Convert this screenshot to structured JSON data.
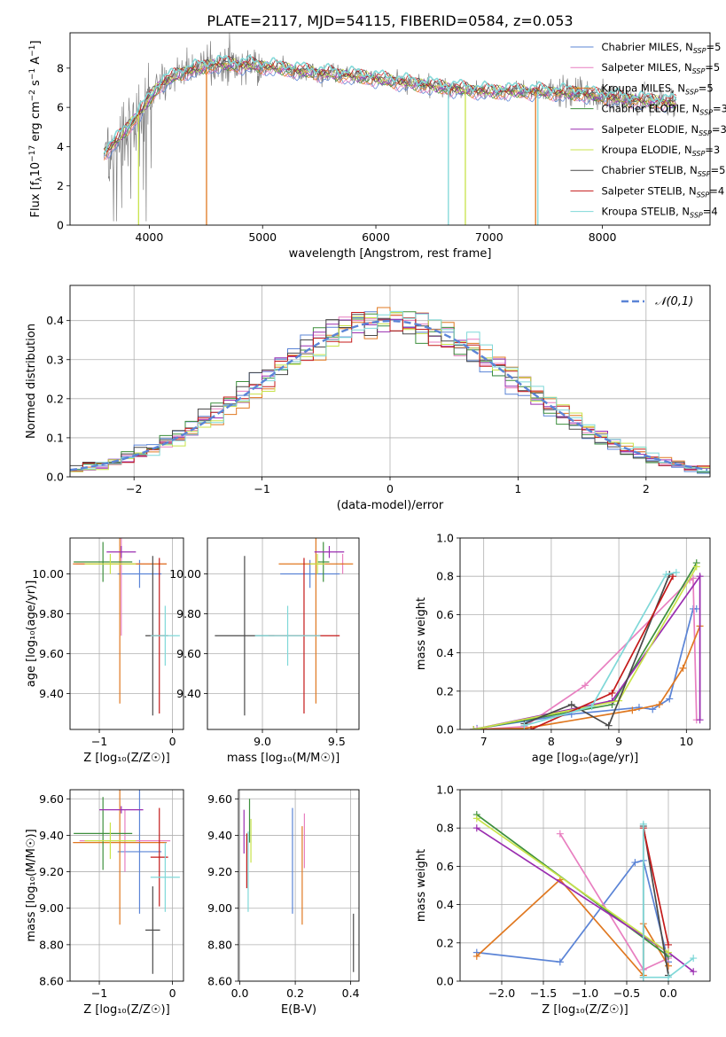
{
  "figure_title": "PLATE=2117, MJD=54115, FIBERID=0584, z=0.053",
  "series_colors": {
    "Chabrier MILES": "#5b84d6",
    "Salpeter MILES": "#e87fc0",
    "Kroupa MILES": "#e07820",
    "Chabrier ELODIE": "#3d8f3d",
    "Salpeter ELODIE": "#9a2db0",
    "Kroupa ELODIE": "#c8e34a",
    "Chabrier STELIB": "#4a4a4a",
    "Salpeter STELIB": "#c41a1a",
    "Kroupa STELIB": "#7fd8d8"
  },
  "chart_data": [
    {
      "id": "spectrum",
      "type": "line",
      "title": "PLATE=2117, MJD=54115, FIBERID=0584, z=0.053",
      "xlabel": "wavelength [Angstrom, rest frame]",
      "ylabel_parts": [
        "Flux [f",
        "λ",
        "10",
        "−17",
        " erg cm",
        "−2",
        " s",
        "−1",
        " A",
        "−1",
        "]"
      ],
      "xlim": [
        3300,
        8950
      ],
      "ylim": [
        0,
        9.8
      ],
      "xticks": [
        4000,
        5000,
        6000,
        7000,
        8000
      ],
      "yticks": [
        0,
        2,
        4,
        6,
        8
      ],
      "grid": false,
      "legend_position": "top-right",
      "legend": [
        {
          "label": "Chabrier MILES",
          "n": "5"
        },
        {
          "label": "Salpeter MILES",
          "n": "5"
        },
        {
          "label": "Kroupa MILES",
          "n": "5"
        },
        {
          "label": "Chabrier ELODIE",
          "n": "3"
        },
        {
          "label": "Salpeter ELODIE",
          "n": "3"
        },
        {
          "label": "Kroupa ELODIE",
          "n": "3"
        },
        {
          "label": "Chabrier STELIB",
          "n": "5"
        },
        {
          "label": "Salpeter STELIB",
          "n": "4"
        },
        {
          "label": "Kroupa STELIB",
          "n": "4"
        }
      ],
      "data_color": "#808080",
      "data_x_range": [
        3600,
        8660
      ],
      "continuum": {
        "x": [
          3600,
          3700,
          3900,
          4100,
          4300,
          4600,
          5000,
          5400,
          5800,
          6200,
          6600,
          7000,
          7400,
          7800,
          8200,
          8660
        ],
        "y": [
          3.7,
          4.2,
          5.6,
          7.2,
          7.8,
          8.2,
          8.1,
          7.8,
          7.6,
          7.3,
          7.0,
          6.8,
          6.8,
          6.7,
          6.4,
          6.2
        ]
      },
      "dips": [
        {
          "x": 3905,
          "series": "Kroupa ELODIE"
        },
        {
          "x": 4505,
          "series": "Kroupa MILES"
        },
        {
          "x": 6640,
          "series": "Kroupa STELIB"
        },
        {
          "x": 6790,
          "series": "Kroupa ELODIE"
        },
        {
          "x": 7410,
          "series": "Kroupa MILES"
        },
        {
          "x": 7430,
          "series": "Kroupa STELIB"
        }
      ]
    },
    {
      "id": "residuals",
      "type": "line",
      "xlabel": "(data-model)/error",
      "ylabel": "Normed distribution",
      "xlim": [
        -2.5,
        2.5
      ],
      "ylim": [
        0,
        0.49
      ],
      "xticks": [
        -2,
        -1,
        0,
        1,
        2
      ],
      "yticks": [
        0.0,
        0.1,
        0.2,
        0.3,
        0.4
      ],
      "grid": true,
      "legend_position": "top-right",
      "reference_label": "𝒩(0,1)",
      "reference_color": "#5b84d6",
      "bin_width": 0.1,
      "histogram_series": [
        "Chabrier MILES",
        "Salpeter MILES",
        "Kroupa MILES",
        "Chabrier ELODIE",
        "Salpeter ELODIE",
        "Kroupa ELODIE",
        "Chabrier STELIB",
        "Salpeter STELIB",
        "Kroupa STELIB"
      ]
    },
    {
      "id": "age_vs_Z",
      "type": "scatter",
      "errorbars": true,
      "xlabel": "Z [log₁₀(Z/Z☉)]",
      "ylabel": "age  [log₁₀(age/yr)]",
      "xlim": [
        -1.4,
        0.15
      ],
      "ylim": [
        9.22,
        10.18
      ],
      "xticks": [
        -1,
        0
      ],
      "yticks": [
        9.4,
        9.6,
        9.8,
        10.0
      ],
      "grid": true,
      "points": [
        {
          "series": "Chabrier MILES",
          "x": -0.45,
          "xerr": 0.3,
          "y": 10.0,
          "yerr": 0.07
        },
        {
          "series": "Salpeter MILES",
          "x": -0.7,
          "xerr": 0.62,
          "y": 10.05,
          "yerr": 0.36
        },
        {
          "series": "Kroupa MILES",
          "x": -0.72,
          "xerr": 0.64,
          "y": 10.05,
          "yerr": 0.7
        },
        {
          "series": "Chabrier ELODIE",
          "x": -0.95,
          "xerr": 0.4,
          "y": 10.06,
          "yerr": 0.1
        },
        {
          "series": "Salpeter ELODIE",
          "x": -0.7,
          "xerr": 0.2,
          "y": 10.11,
          "yerr": 0.03
        },
        {
          "series": "Kroupa ELODIE",
          "x": -0.85,
          "xerr": 0.35,
          "y": 10.05,
          "yerr": 0.05
        },
        {
          "series": "Chabrier STELIB",
          "x": -0.27,
          "xerr": 0.1,
          "y": 9.69,
          "yerr": 0.4
        },
        {
          "series": "Salpeter STELIB",
          "x": -0.18,
          "xerr": 0.12,
          "y": 9.69,
          "yerr": 0.39
        },
        {
          "series": "Kroupa STELIB",
          "x": -0.1,
          "xerr": 0.2,
          "y": 9.69,
          "yerr": 0.15
        }
      ]
    },
    {
      "id": "age_vs_mass",
      "type": "scatter",
      "errorbars": true,
      "xlabel": "mass [log₁₀(M/M☉)]",
      "ylabel": "",
      "xlim": [
        8.63,
        9.65
      ],
      "ylim": [
        9.22,
        10.18
      ],
      "xticks": [
        9.0,
        9.5
      ],
      "yticks": [
        9.4,
        9.6,
        9.8,
        10.0
      ],
      "grid": true,
      "points": [
        {
          "series": "Chabrier MILES",
          "x": 9.32,
          "xerr": 0.2,
          "y": 10.0,
          "yerr": 0.07
        },
        {
          "series": "Salpeter MILES",
          "x": 9.54,
          "xerr": 0.01,
          "y": 10.05,
          "yerr": 0.05
        },
        {
          "series": "Kroupa MILES",
          "x": 9.36,
          "xerr": 0.25,
          "y": 10.05,
          "yerr": 0.7
        },
        {
          "series": "Chabrier ELODIE",
          "x": 9.41,
          "xerr": 0.04,
          "y": 10.06,
          "yerr": 0.1
        },
        {
          "series": "Salpeter ELODIE",
          "x": 9.45,
          "xerr": 0.1,
          "y": 10.11,
          "yerr": 0.03
        },
        {
          "series": "Kroupa ELODIE",
          "x": 9.37,
          "xerr": 0.05,
          "y": 10.05,
          "yerr": 0.05
        },
        {
          "series": "Chabrier STELIB",
          "x": 8.88,
          "xerr": 0.2,
          "y": 9.69,
          "yerr": 0.4
        },
        {
          "series": "Salpeter STELIB",
          "x": 9.28,
          "xerr": 0.24,
          "y": 9.69,
          "yerr": 0.39
        },
        {
          "series": "Kroupa STELIB",
          "x": 9.17,
          "xerr": 0.22,
          "y": 9.69,
          "yerr": 0.15
        }
      ]
    },
    {
      "id": "weight_vs_age",
      "type": "line",
      "xlabel": "age  [log₁₀(age/yr)]",
      "ylabel": "mass weight",
      "xlim": [
        6.65,
        10.35
      ],
      "ylim": [
        0,
        1.0
      ],
      "xticks": [
        7,
        8,
        9,
        10
      ],
      "yticks": [
        0.0,
        0.2,
        0.4,
        0.6,
        0.8,
        1.0
      ],
      "grid": true,
      "series": [
        {
          "name": "Chabrier MILES",
          "x": [
            6.9,
            8.3,
            9.3,
            9.5,
            9.75,
            10.1,
            10.15
          ],
          "y": [
            0.005,
            0.08,
            0.115,
            0.105,
            0.16,
            0.63,
            0.63
          ]
        },
        {
          "name": "Salpeter MILES",
          "x": [
            6.9,
            7.6,
            8.5,
            10.05,
            10.1,
            10.15
          ],
          "y": [
            0.0,
            0.015,
            0.23,
            0.78,
            0.79,
            0.05
          ]
        },
        {
          "name": "Kroupa MILES",
          "x": [
            6.85,
            7.6,
            9.2,
            9.6,
            9.95,
            10.2
          ],
          "y": [
            0.0,
            0.005,
            0.1,
            0.13,
            0.32,
            0.54
          ]
        },
        {
          "name": "Chabrier ELODIE",
          "x": [
            6.85,
            8.9,
            10.15
          ],
          "y": [
            0.0,
            0.13,
            0.87
          ]
        },
        {
          "name": "Salpeter ELODIE",
          "x": [
            6.85,
            8.9,
            10.2,
            10.2
          ],
          "y": [
            0.0,
            0.15,
            0.8,
            0.05
          ]
        },
        {
          "name": "Kroupa ELODIE",
          "x": [
            6.85,
            9.0,
            10.15
          ],
          "y": [
            0.0,
            0.15,
            0.85
          ]
        },
        {
          "name": "Chabrier STELIB",
          "x": [
            7.6,
            8.3,
            8.85,
            9.75
          ],
          "y": [
            0.03,
            0.13,
            0.02,
            0.81
          ]
        },
        {
          "name": "Salpeter STELIB",
          "x": [
            7.7,
            8.9,
            9.8
          ],
          "y": [
            0.0,
            0.19,
            0.8
          ]
        },
        {
          "name": "Kroupa STELIB",
          "x": [
            7.6,
            8.6,
            9.7,
            9.85
          ],
          "y": [
            0.02,
            0.12,
            0.81,
            0.82
          ]
        }
      ]
    },
    {
      "id": "mass_vs_Z",
      "type": "scatter",
      "errorbars": true,
      "xlabel": "Z [log₁₀(Z/Z☉)]",
      "ylabel": "mass [log₁₀(M/M☉)]",
      "xlim": [
        -1.4,
        0.15
      ],
      "ylim": [
        8.6,
        9.65
      ],
      "xticks": [
        -1,
        0
      ],
      "yticks": [
        8.6,
        8.8,
        9.0,
        9.2,
        9.4,
        9.6
      ],
      "grid": true,
      "points": [
        {
          "series": "Chabrier MILES",
          "x": -0.45,
          "xerr": 0.3,
          "y": 9.31,
          "yerr": 0.34
        },
        {
          "series": "Salpeter MILES",
          "x": -0.65,
          "xerr": 0.62,
          "y": 9.37,
          "yerr": 0.17
        },
        {
          "series": "Kroupa MILES",
          "x": -0.72,
          "xerr": 0.64,
          "y": 9.36,
          "yerr": 0.45
        },
        {
          "series": "Chabrier ELODIE",
          "x": -0.95,
          "xerr": 0.4,
          "y": 9.41,
          "yerr": 0.2
        },
        {
          "series": "Salpeter ELODIE",
          "x": -0.7,
          "xerr": 0.3,
          "y": 9.54,
          "yerr": 0.02
        },
        {
          "series": "Kroupa ELODIE",
          "x": -0.85,
          "xerr": 0.35,
          "y": 9.37,
          "yerr": 0.1
        },
        {
          "series": "Chabrier STELIB",
          "x": -0.27,
          "xerr": 0.1,
          "y": 8.88,
          "yerr": 0.24
        },
        {
          "series": "Salpeter STELIB",
          "x": -0.18,
          "xerr": 0.12,
          "y": 9.28,
          "yerr": 0.27
        },
        {
          "series": "Kroupa STELIB",
          "x": -0.1,
          "xerr": 0.2,
          "y": 9.17,
          "yerr": 0.19
        }
      ]
    },
    {
      "id": "mass_vs_ebv",
      "type": "scatter",
      "errorbars": true,
      "xlabel": "E(B-V)",
      "ylabel": "",
      "xlim": [
        -0.005,
        0.43
      ],
      "ylim": [
        8.6,
        9.65
      ],
      "xticks": [
        0.0,
        0.2,
        0.4
      ],
      "yticks": [
        8.6,
        8.8,
        9.0,
        9.2,
        9.4,
        9.6
      ],
      "grid": true,
      "points": [
        {
          "series": "Chabrier MILES",
          "x": 0.19,
          "y": 9.26,
          "yerr": 0.29
        },
        {
          "series": "Salpeter MILES",
          "x": 0.233,
          "y": 9.37,
          "yerr": 0.15
        },
        {
          "series": "Kroupa MILES",
          "x": 0.225,
          "y": 9.18,
          "yerr": 0.27
        },
        {
          "series": "Chabrier ELODIE",
          "x": 0.035,
          "y": 9.48,
          "yerr": 0.12
        },
        {
          "series": "Salpeter ELODIE",
          "x": 0.015,
          "y": 9.42,
          "yerr": 0.12
        },
        {
          "series": "Kroupa ELODIE",
          "x": 0.04,
          "y": 9.37,
          "yerr": 0.12
        },
        {
          "series": "Chabrier STELIB",
          "x": 0.41,
          "y": 8.81,
          "yerr": 0.16
        },
        {
          "series": "Salpeter STELIB",
          "x": 0.025,
          "y": 9.26,
          "yerr": 0.15
        },
        {
          "series": "Kroupa STELIB",
          "x": 0.03,
          "y": 9.2,
          "yerr": 0.22
        }
      ]
    },
    {
      "id": "weight_vs_Z",
      "type": "line",
      "xlabel": "Z [log₁₀(Z/Z☉)]",
      "ylabel": "mass weight",
      "xlim": [
        -2.5,
        0.5
      ],
      "ylim": [
        0,
        1.0
      ],
      "xticks": [
        -2.0,
        -1.5,
        -1.0,
        -0.5,
        0.0
      ],
      "yticks": [
        0.0,
        0.2,
        0.4,
        0.6,
        0.8,
        1.0
      ],
      "grid": true,
      "series": [
        {
          "name": "Chabrier MILES",
          "x": [
            -2.3,
            -1.3,
            -0.4,
            -0.3,
            0.0
          ],
          "y": [
            0.15,
            0.1,
            0.62,
            0.63,
            0.1
          ]
        },
        {
          "name": "Salpeter MILES",
          "x": [
            -1.3,
            -0.3,
            0.0
          ],
          "y": [
            0.77,
            0.06,
            0.12
          ]
        },
        {
          "name": "Kroupa MILES",
          "x": [
            -2.3,
            -1.3,
            -0.3,
            -0.3,
            0.0
          ],
          "y": [
            0.13,
            0.53,
            0.03,
            0.3,
            0.08
          ]
        },
        {
          "name": "Chabrier ELODIE",
          "x": [
            -2.3,
            0.0
          ],
          "y": [
            0.87,
            0.13
          ]
        },
        {
          "name": "Salpeter ELODIE",
          "x": [
            -2.3,
            0.0,
            0.3
          ],
          "y": [
            0.8,
            0.15,
            0.05
          ]
        },
        {
          "name": "Kroupa ELODIE",
          "x": [
            -2.3,
            0.0
          ],
          "y": [
            0.85,
            0.15
          ]
        },
        {
          "name": "Chabrier STELIB",
          "x": [
            -0.3,
            -0.3,
            0.0
          ],
          "y": [
            0.02,
            0.81,
            0.03
          ]
        },
        {
          "name": "Salpeter STELIB",
          "x": [
            -0.3,
            0.0
          ],
          "y": [
            0.8,
            0.19
          ]
        },
        {
          "name": "Kroupa STELIB",
          "x": [
            -0.3,
            -0.3,
            0.0,
            0.3
          ],
          "y": [
            0.82,
            0.02,
            0.02,
            0.12
          ]
        }
      ]
    }
  ]
}
